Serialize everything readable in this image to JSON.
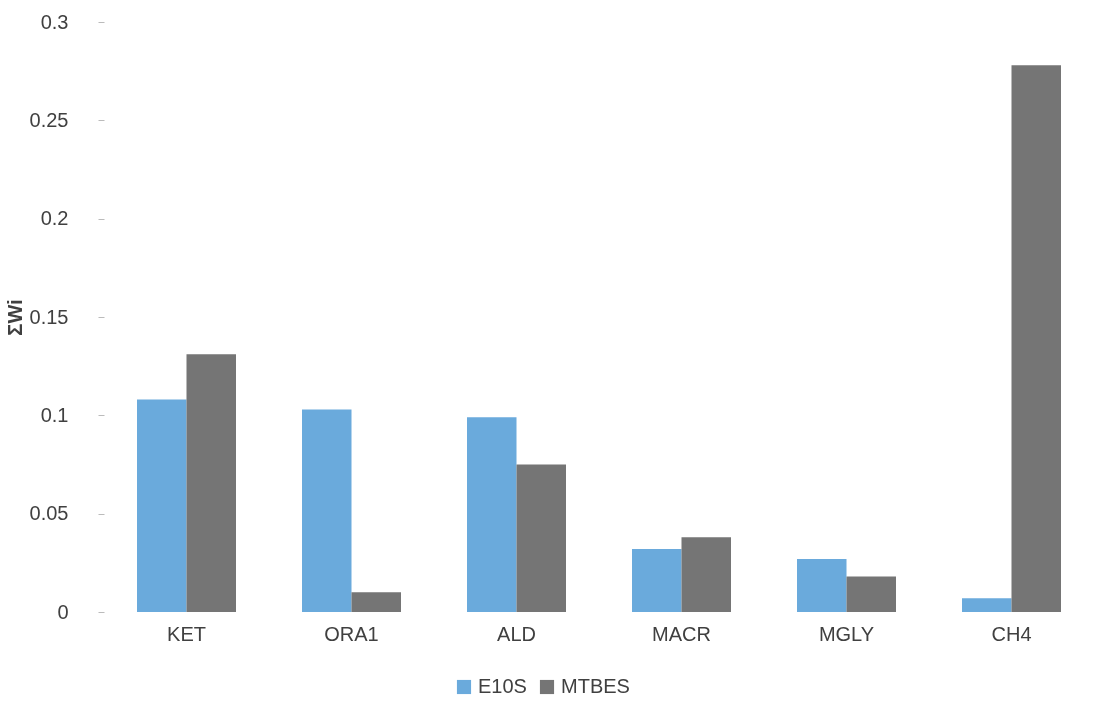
{
  "chart_data": {
    "type": "bar",
    "ylabel": "ΣWi",
    "categories": [
      "KET",
      "ORA1",
      "ALD",
      "MACR",
      "MGLY",
      "CH4"
    ],
    "series": [
      {
        "name": "E10S",
        "color": "#6aaadc",
        "values": [
          0.108,
          0.103,
          0.099,
          0.032,
          0.027,
          0.007
        ]
      },
      {
        "name": "MTBES",
        "color": "#757575",
        "values": [
          0.131,
          0.01,
          0.075,
          0.038,
          0.018,
          0.278
        ]
      }
    ],
    "ylim": [
      0,
      0.3
    ],
    "yticks": [
      0,
      0.05,
      0.1,
      0.15,
      0.2,
      0.25,
      0.3
    ],
    "grid": false,
    "legend": "bottom"
  }
}
